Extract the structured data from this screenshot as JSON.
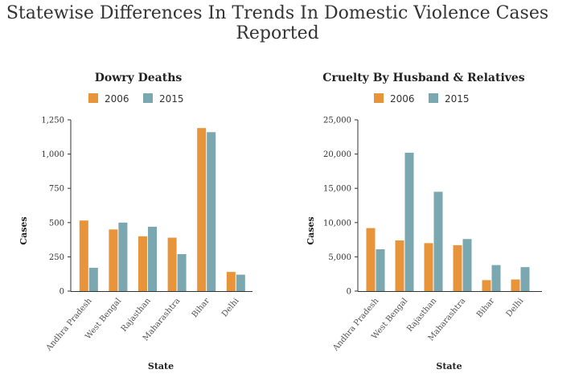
{
  "page": {
    "title": "Statewise Differences In Trends In Domestic Violence Cases Reported"
  },
  "colors": {
    "series_2006": "#E8943A",
    "series_2015": "#7BA7B0",
    "axis": "#333333"
  },
  "chart_data": [
    {
      "type": "bar",
      "title": "Dowry Deaths",
      "xlabel": "State",
      "ylabel": "Cases",
      "categories": [
        "Andhra Pradesh",
        "West Bengal",
        "Rajasthan",
        "Maharashtra",
        "Bihar",
        "Delhi"
      ],
      "series": [
        {
          "name": "2006",
          "values": [
            515,
            450,
            400,
            390,
            1190,
            140
          ]
        },
        {
          "name": "2015",
          "values": [
            170,
            500,
            470,
            270,
            1160,
            120
          ]
        }
      ],
      "ylim": [
        0,
        1250
      ],
      "yticks": [
        0,
        250,
        500,
        750,
        1000,
        1250
      ],
      "ytick_labels": [
        "0",
        "250",
        "500",
        "750",
        "1,000",
        "1,250"
      ],
      "grid": false,
      "legend": "top-center"
    },
    {
      "type": "bar",
      "title": "Cruelty By Husband & Relatives",
      "xlabel": "State",
      "ylabel": "Cases",
      "categories": [
        "Andhra Pradesh",
        "West Bengal",
        "Rajasthan",
        "Maharashtra",
        "Bihar",
        "Delhi"
      ],
      "series": [
        {
          "name": "2006",
          "values": [
            9200,
            7400,
            7000,
            6700,
            1600,
            1700
          ]
        },
        {
          "name": "2015",
          "values": [
            6100,
            20200,
            14500,
            7600,
            3800,
            3500
          ]
        }
      ],
      "ylim": [
        0,
        25000
      ],
      "yticks": [
        0,
        5000,
        10000,
        15000,
        20000,
        25000
      ],
      "ytick_labels": [
        "0",
        "5,000",
        "10,000",
        "15,000",
        "20,000",
        "25,000"
      ],
      "grid": false,
      "legend": "top-center"
    }
  ]
}
